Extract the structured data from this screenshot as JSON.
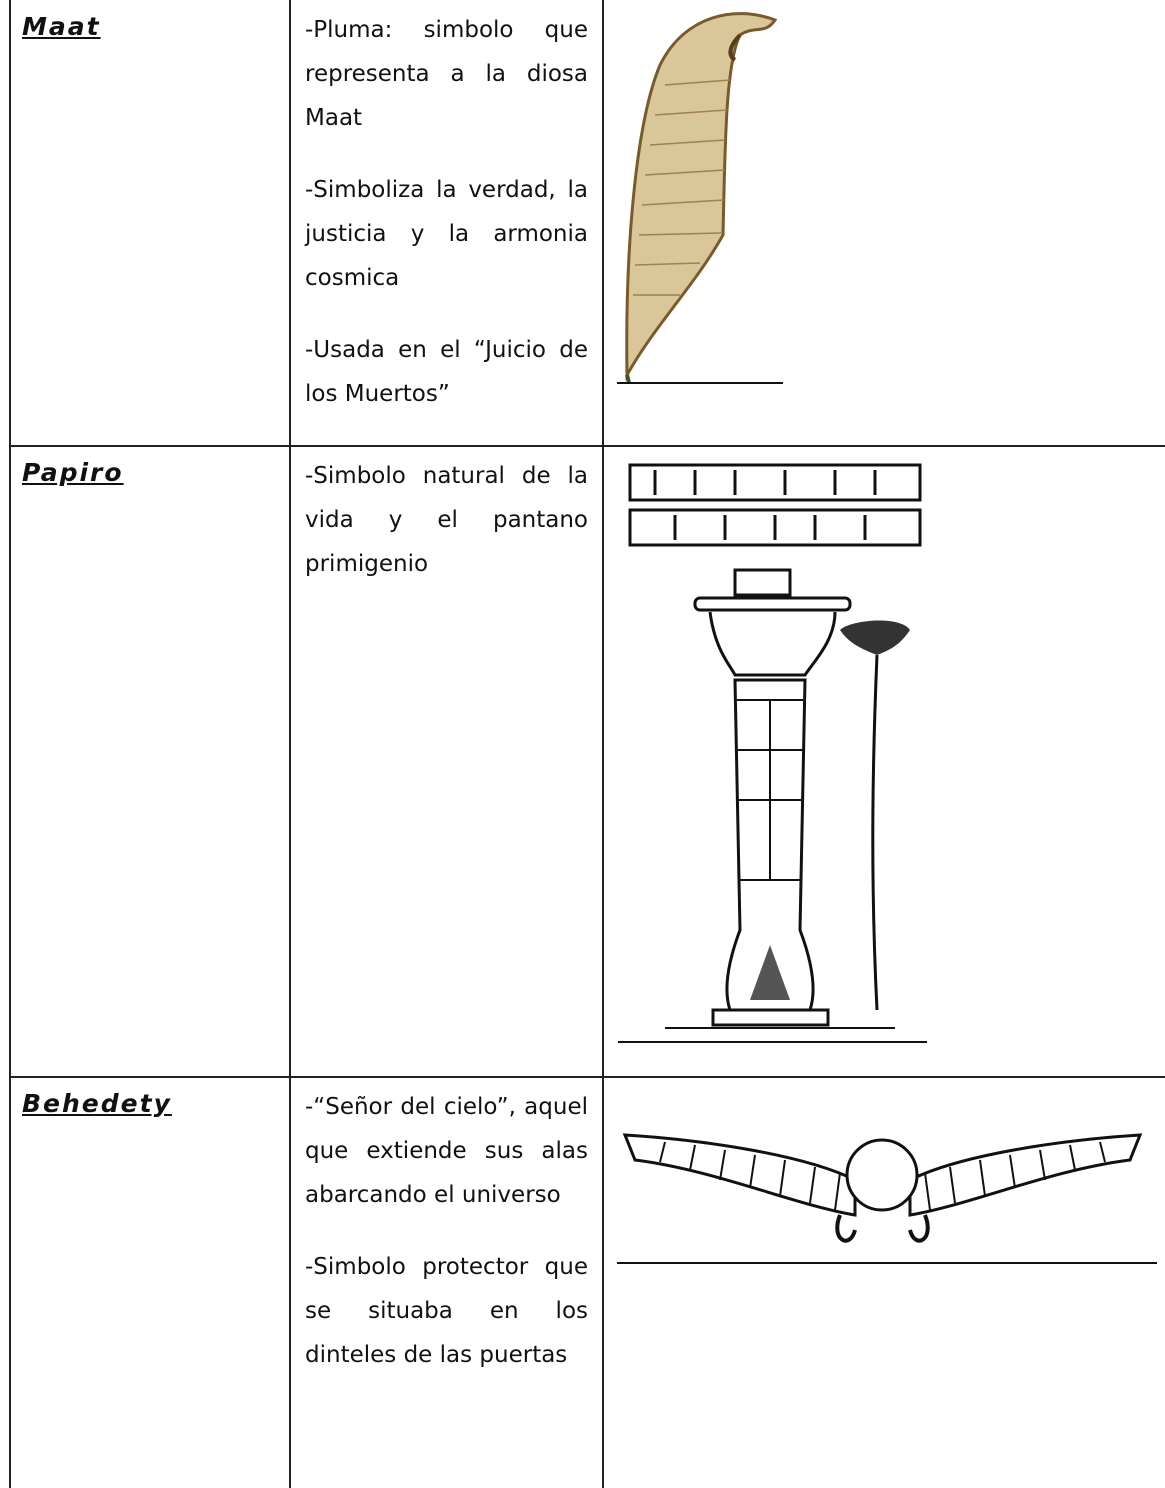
{
  "table": {
    "rows": [
      {
        "name": "Maat",
        "description": [
          "-Pluma:  simbolo que representa a la diosa Maat",
          " -Simboliza la verdad, la justicia y la armonia cosmica",
          "-Usada en el “Juicio de los Muertos”"
        ]
      },
      {
        "name": "Papiro",
        "description": [
          "-Simbolo natural de la vida y el pantano primigenio"
        ]
      },
      {
        "name": "Behedety",
        "description": [
          "-“Señor del cielo”, aquel que extiende sus alas abarcando el universo",
          "-Simbolo protector que se situaba en los dinteles de las puertas"
        ]
      }
    ]
  }
}
